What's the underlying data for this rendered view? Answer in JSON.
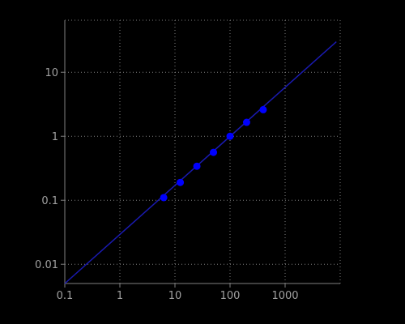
{
  "chart_data": {
    "type": "scatter",
    "title": "",
    "xlabel": "",
    "ylabel": "",
    "x_scale": "log",
    "y_scale": "log",
    "xlim": [
      0.1,
      10000
    ],
    "ylim": [
      0.005,
      65
    ],
    "grid": true,
    "x_ticks": [
      {
        "value": 0.1,
        "label": "0.1"
      },
      {
        "value": 1,
        "label": "1"
      },
      {
        "value": 10,
        "label": "10"
      },
      {
        "value": 100,
        "label": "100"
      },
      {
        "value": 1000,
        "label": "1000"
      }
    ],
    "y_ticks": [
      {
        "value": 0.01,
        "label": "0.01"
      },
      {
        "value": 0.1,
        "label": "0.1"
      },
      {
        "value": 1,
        "label": "1"
      },
      {
        "value": 10,
        "label": "10"
      }
    ],
    "points": {
      "x": [
        6.25,
        12.5,
        25,
        50,
        100,
        200,
        400
      ],
      "y": [
        0.11,
        0.19,
        0.34,
        0.56,
        1.0,
        1.65,
        2.6
      ]
    },
    "fit_line": {
      "x": [
        0.1,
        8500
      ],
      "y": [
        0.005,
        30
      ]
    },
    "colors": {
      "background": "#000000",
      "axis": "#808080",
      "grid": "#808080",
      "tick_label": "#a0a0a0",
      "points": "#0000ff",
      "fit_line": "#1a1ab0"
    }
  }
}
